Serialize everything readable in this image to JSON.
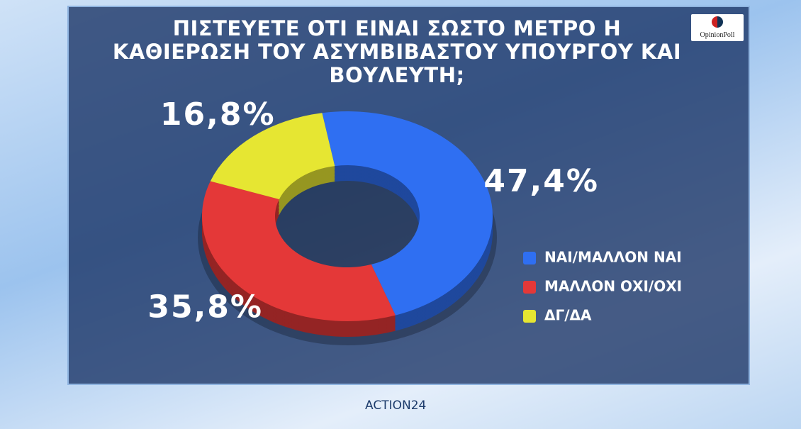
{
  "chart_data": {
    "type": "pie",
    "donut": true,
    "title": "ΠΙΣΤΕΥΕΤΕ ΟΤΙ ΕΙΝΑΙ ΣΩΣΤΟ ΜΕΤΡΟ Η ΚΑΘΙΕΡΩΣΗ ΤΟΥ ΑΣΥΜΒΙΒΑΣΤΟΥ ΥΠΟΥΡΓΟΥ ΚΑΙ ΒΟΥΛΕΥΤΗ;",
    "categories": [
      "ΝΑΙ/ΜΑΛΛΟΝ ΝΑΙ",
      "ΜΑΛΛΟΝ ΟΧΙ/ΟΧΙ",
      "ΔΓ/ΔΑ"
    ],
    "values": [
      47.4,
      35.8,
      16.8
    ],
    "value_labels": [
      "47,4%",
      "35,8%",
      "16,8%"
    ],
    "colors": [
      "#2f6ff2",
      "#e43838",
      "#e6e632"
    ],
    "legend": "right"
  },
  "branding": {
    "poll_logo": "OpinionPoll",
    "channel": "ACTION24"
  }
}
